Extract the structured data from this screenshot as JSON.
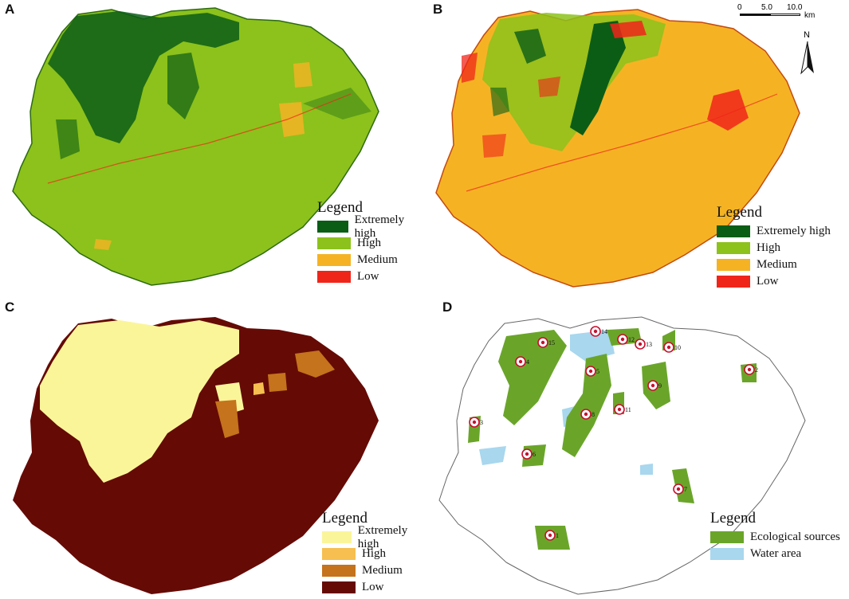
{
  "panels": [
    {
      "letter": "A",
      "legend_title": "Legend",
      "legend": [
        {
          "label": "Extremely high",
          "color": "#0b5d16"
        },
        {
          "label": "High",
          "color": "#8cc21b"
        },
        {
          "label": "Medium",
          "color": "#f5b324"
        },
        {
          "label": "Low",
          "color": "#f0251a"
        }
      ]
    },
    {
      "letter": "B",
      "legend_title": "Legend",
      "legend": [
        {
          "label": "Extremely high",
          "color": "#0b5d16"
        },
        {
          "label": "High",
          "color": "#8cc21b"
        },
        {
          "label": "Medium",
          "color": "#f5b324"
        },
        {
          "label": "Low",
          "color": "#f0251a"
        }
      ],
      "scale_bar": {
        "ticks": [
          "0",
          "5.0",
          "10.0"
        ],
        "unit": "km"
      },
      "north_label": "N"
    },
    {
      "letter": "C",
      "legend_title": "Legend",
      "legend": [
        {
          "label": "Extremely high",
          "color": "#fbf59a"
        },
        {
          "label": "High",
          "color": "#f6bf4f"
        },
        {
          "label": "Medium",
          "color": "#c5731c"
        },
        {
          "label": "Low",
          "color": "#650a05"
        }
      ]
    },
    {
      "letter": "D",
      "legend_title": "Legend",
      "legend": [
        {
          "label": "Ecological sources",
          "color": "#6aa52a"
        },
        {
          "label": "Water area",
          "color": "#a8d7ee"
        }
      ],
      "sources": [
        "1",
        "2",
        "3",
        "4",
        "5",
        "6",
        "7",
        "8",
        "9",
        "10",
        "11",
        "12",
        "13",
        "14",
        "15"
      ]
    }
  ]
}
